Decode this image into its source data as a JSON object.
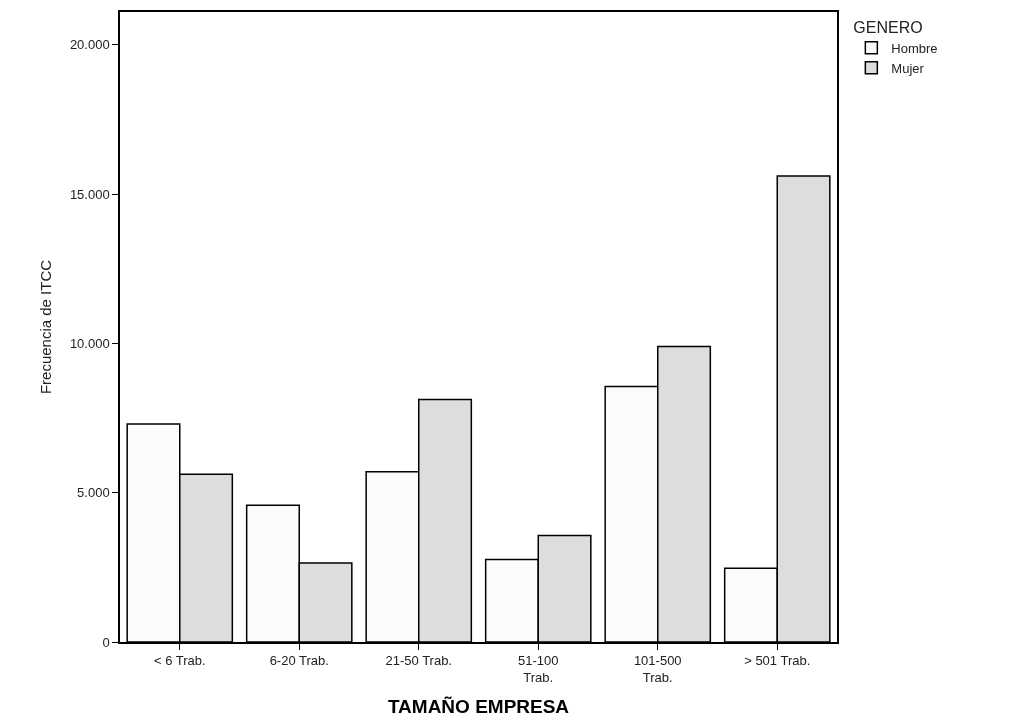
{
  "chart_data": {
    "type": "bar",
    "xlabel": "TAMAÑO EMPRESA",
    "ylabel": "Frecuencia de ITCC",
    "legend_title": "GENERO",
    "categories": [
      "< 6 Trab.",
      "6-20 Trab.",
      "21-50 Trab.",
      "51-100 Trab.",
      "101-500 Trab.",
      "> 501 Trab."
    ],
    "series": [
      {
        "name": "Hombre",
        "color": "#fbfbfb",
        "values": [
          7300,
          4580,
          5700,
          2760,
          8560,
          2470
        ]
      },
      {
        "name": "Mujer",
        "color": "#dddddd",
        "values": [
          5620,
          2650,
          8120,
          3570,
          9900,
          15610
        ]
      }
    ],
    "ylim": [
      0,
      21100
    ],
    "yticks": [
      {
        "value": 0,
        "label": "0"
      },
      {
        "value": 5000,
        "label": "5.000"
      },
      {
        "value": 10000,
        "label": "10.000"
      },
      {
        "value": 15000,
        "label": "15.000"
      },
      {
        "value": 20000,
        "label": "20.000"
      }
    ],
    "legend": "top right"
  }
}
